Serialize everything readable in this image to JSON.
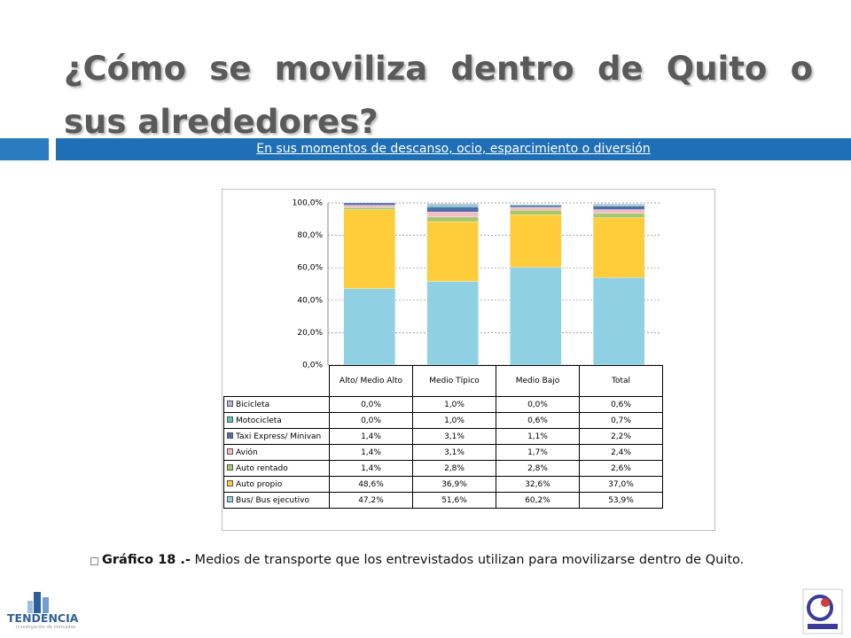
{
  "title": "¿Cómo se moviliza dentro de Quito o sus alrededores?",
  "subtitle": "En sus momentos de descanso, ocio, esparcimiento o diversión",
  "caption": {
    "label": "Gráfico 18 .-",
    "text": " Medios de transporte que los entrevistados utilizan para movilizarse dentro de Quito."
  },
  "logo": {
    "name": "TENDENCIA",
    "tagline": "investigación de mercados"
  },
  "chart_data": {
    "type": "stacked_bar",
    "categories": [
      "Alto/ Medio Alto",
      "Medio Típico",
      "Medio Bajo",
      "Total"
    ],
    "ylim": [
      0,
      100
    ],
    "yticks": [
      {
        "value": 0,
        "label": "0,0%"
      },
      {
        "value": 20,
        "label": "20,0%"
      },
      {
        "value": 40,
        "label": "40,0%"
      },
      {
        "value": 60,
        "label": "60,0%"
      },
      {
        "value": 80,
        "label": "80,0%"
      },
      {
        "value": 100,
        "label": "100,0%"
      }
    ],
    "grid": true,
    "series": [
      {
        "name": "Bus/ Bus ejecutivo",
        "color": "#8fd0e3",
        "values": [
          47.2,
          51.6,
          60.2,
          53.9
        ],
        "value_labels": [
          "47,2%",
          "51,6%",
          "60,2%",
          "53,9%"
        ]
      },
      {
        "name": "Auto propio",
        "color": "#ffcc3a",
        "values": [
          48.6,
          36.9,
          32.6,
          37.0
        ],
        "value_labels": [
          "48,6%",
          "36,9%",
          "32,6%",
          "37,0%"
        ]
      },
      {
        "name": "Auto rentado",
        "color": "#a6c96a",
        "values": [
          1.4,
          2.8,
          2.8,
          2.6
        ],
        "value_labels": [
          "1,4%",
          "2,8%",
          "2,8%",
          "2,6%"
        ]
      },
      {
        "name": "Avión",
        "color": "#f4bcc6",
        "values": [
          1.4,
          3.1,
          1.7,
          2.4
        ],
        "value_labels": [
          "1,4%",
          "3,1%",
          "1,7%",
          "2,4%"
        ]
      },
      {
        "name": "Taxi Express/ Minivan",
        "color": "#4f6fa8",
        "values": [
          1.4,
          3.1,
          1.1,
          2.2
        ],
        "value_labels": [
          "1,4%",
          "3,1%",
          "1,1%",
          "2,2%"
        ]
      },
      {
        "name": "Motocicleta",
        "color": "#5cc3b8",
        "values": [
          0.0,
          1.0,
          0.6,
          0.7
        ],
        "value_labels": [
          "0,0%",
          "1,0%",
          "0,6%",
          "0,7%"
        ]
      },
      {
        "name": "Bicicleta",
        "color": "#b8b0de",
        "values": [
          0.0,
          1.0,
          0.0,
          0.6
        ],
        "value_labels": [
          "0,0%",
          "1,0%",
          "0,0%",
          "0,6%"
        ]
      }
    ]
  }
}
